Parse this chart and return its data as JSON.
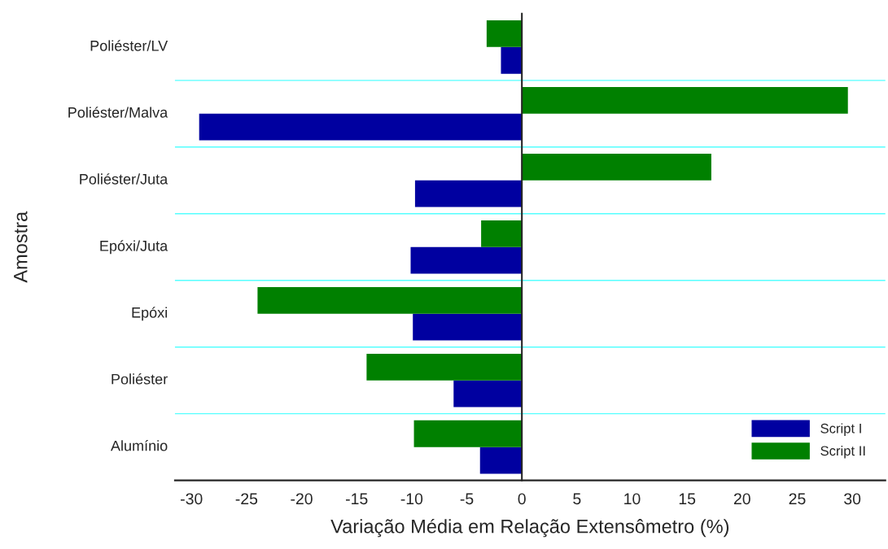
{
  "chart_data": {
    "type": "bar",
    "orientation": "horizontal",
    "categories": [
      "Poliéster/LV",
      "Poliéster/Malva",
      "Poliéster/Juta",
      "Epóxi/Juta",
      "Epóxi",
      "Poliéster",
      "Alumínio"
    ],
    "series": [
      {
        "name": "Script I",
        "color": "#0000a0",
        "values": [
          -1.9,
          -29.3,
          -9.7,
          -10.1,
          -9.9,
          -6.2,
          -3.8
        ]
      },
      {
        "name": "Script II",
        "color": "#008000",
        "values": [
          -3.2,
          29.6,
          17.2,
          -3.7,
          -24.0,
          -14.1,
          -9.8
        ]
      }
    ],
    "xlabel": "Variação Média em Relação Extensômetro (%)",
    "ylabel": "Amostra",
    "xlim": [
      -31.5,
      33
    ],
    "xticks": [
      -30,
      -25,
      -20,
      -15,
      -10,
      -5,
      0,
      5,
      10,
      15,
      20,
      25,
      30
    ],
    "grid": "y",
    "legend": "bottom right"
  }
}
